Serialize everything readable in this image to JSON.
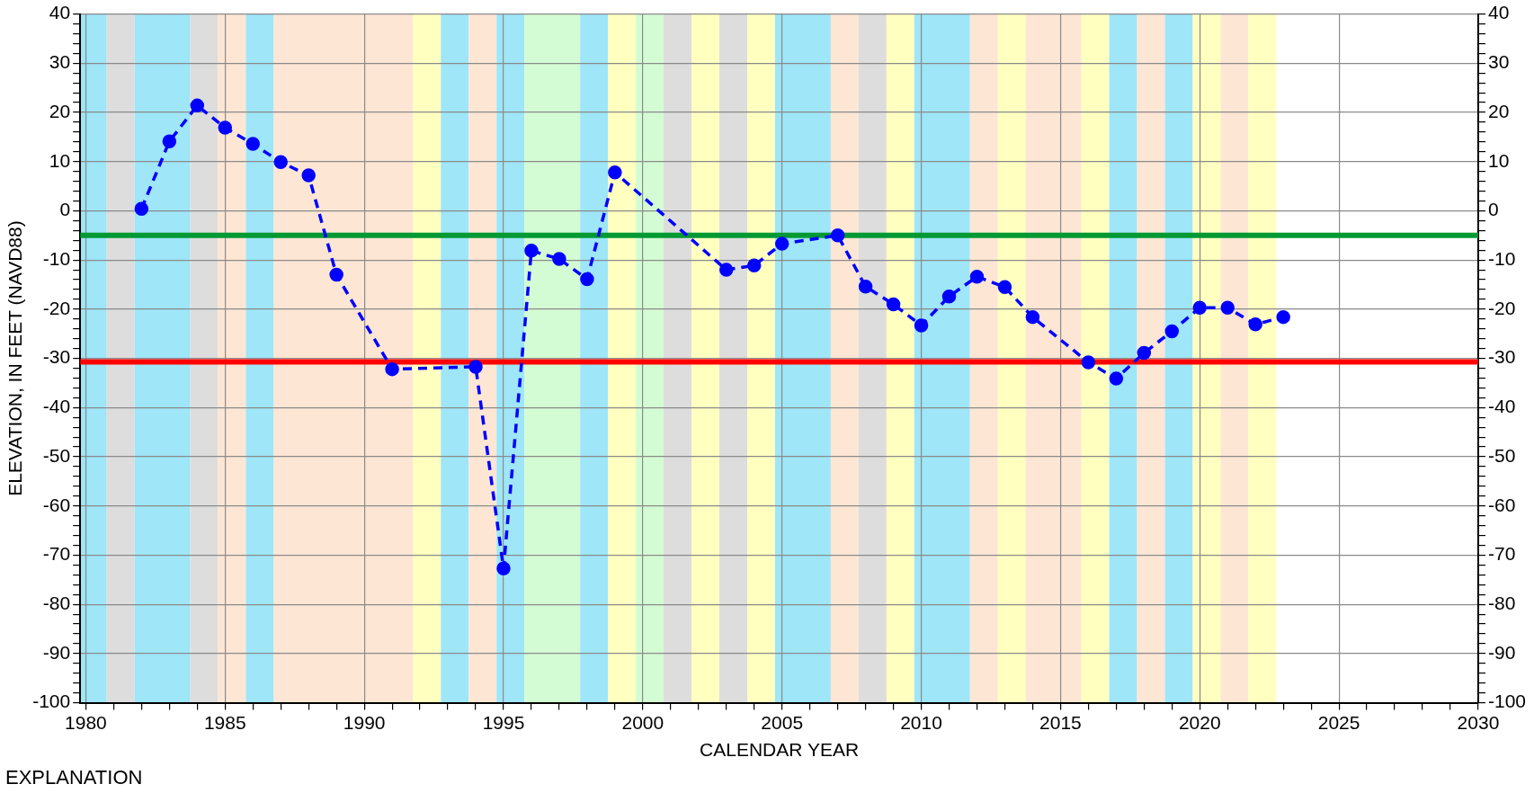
{
  "chart_data": {
    "type": "line",
    "xlabel": "CALENDAR YEAR",
    "ylabel": "ELEVATION, IN FEET (NAVD88)",
    "series": [
      {
        "color": "#0000ff",
        "x": [
          1982,
          1983,
          1984,
          1985,
          1986,
          1987,
          1988,
          1989,
          1991,
          1994,
          1995,
          1996,
          1997,
          1998,
          1999,
          2003,
          2004,
          2005,
          2007,
          2008,
          2009,
          2010,
          2011,
          2012,
          2013,
          2014,
          2016,
          2017,
          2018,
          2019,
          2020,
          2021,
          2022,
          2023
        ],
        "values": [
          0.4,
          14.1,
          21.4,
          16.9,
          13.6,
          9.9,
          7.2,
          -13.0,
          -32.2,
          -31.7,
          -72.7,
          -8.1,
          -9.8,
          -13.9,
          7.8,
          -12.0,
          -11.1,
          -6.7,
          -5.0,
          -15.4,
          -19.0,
          -23.3,
          -17.4,
          -13.4,
          -15.5,
          -21.6,
          -30.8,
          -34.1,
          -28.9,
          -24.5,
          -19.7,
          -19.7,
          -23.1,
          -21.6
        ]
      }
    ],
    "marker": "circle",
    "line_style": "dashed",
    "grid": true,
    "legend": false,
    "xlim": [
      1979.8,
      2030
    ],
    "xticks": [
      1980,
      {
        "value": 1981,
        "label": null
      },
      {
        "value": 1982,
        "label": null
      },
      {
        "value": 1983,
        "label": null
      },
      {
        "value": 1984,
        "label": null
      },
      1985,
      {
        "value": 1986,
        "label": null
      },
      {
        "value": 1987,
        "label": null
      },
      {
        "value": 1988,
        "label": null
      },
      {
        "value": 1989,
        "label": null
      },
      1990,
      {
        "value": 1991,
        "label": null
      },
      {
        "value": 1992,
        "label": null
      },
      {
        "value": 1993,
        "label": null
      },
      {
        "value": 1994,
        "label": null
      },
      1995,
      {
        "value": 1996,
        "label": null
      },
      {
        "value": 1997,
        "label": null
      },
      {
        "value": 1998,
        "label": null
      },
      {
        "value": 1999,
        "label": null
      },
      2000,
      {
        "value": 2001,
        "label": null
      },
      {
        "value": 2002,
        "label": null
      },
      {
        "value": 2003,
        "label": null
      },
      {
        "value": 2004,
        "label": null
      },
      2005,
      {
        "value": 2006,
        "label": null
      },
      {
        "value": 2007,
        "label": null
      },
      {
        "value": 2008,
        "label": null
      },
      {
        "value": 2009,
        "label": null
      },
      2010,
      {
        "value": 2011,
        "label": null
      },
      {
        "value": 2012,
        "label": null
      },
      {
        "value": 2013,
        "label": null
      },
      {
        "value": 2014,
        "label": null
      },
      2015,
      {
        "value": 2016,
        "label": null
      },
      {
        "value": 2017,
        "label": null
      },
      {
        "value": 2018,
        "label": null
      },
      {
        "value": 2019,
        "label": null
      },
      2020,
      {
        "value": 2021,
        "label": null
      },
      {
        "value": 2022,
        "label": null
      },
      {
        "value": 2023,
        "label": null
      },
      {
        "value": 2024,
        "label": null
      },
      2025,
      {
        "value": 2026,
        "label": null
      },
      {
        "value": 2027,
        "label": null
      },
      {
        "value": 2028,
        "label": null
      },
      {
        "value": 2029,
        "label": null
      },
      2030
    ],
    "ylim": [
      -100,
      40
    ],
    "yticks": [
      -100,
      {
        "value": -98,
        "label": null
      },
      {
        "value": -96,
        "label": null
      },
      {
        "value": -94,
        "label": null
      },
      {
        "value": -92,
        "label": null
      },
      -90,
      {
        "value": -88,
        "label": null
      },
      {
        "value": -86,
        "label": null
      },
      {
        "value": -84,
        "label": null
      },
      {
        "value": -82,
        "label": null
      },
      -80,
      {
        "value": -78,
        "label": null
      },
      {
        "value": -76,
        "label": null
      },
      {
        "value": -74,
        "label": null
      },
      {
        "value": -72,
        "label": null
      },
      -70,
      {
        "value": -68,
        "label": null
      },
      {
        "value": -66,
        "label": null
      },
      {
        "value": -64,
        "label": null
      },
      {
        "value": -62,
        "label": null
      },
      -60,
      {
        "value": -58,
        "label": null
      },
      {
        "value": -56,
        "label": null
      },
      {
        "value": -54,
        "label": null
      },
      {
        "value": -52,
        "label": null
      },
      -50,
      {
        "value": -48,
        "label": null
      },
      {
        "value": -46,
        "label": null
      },
      {
        "value": -44,
        "label": null
      },
      {
        "value": -42,
        "label": null
      },
      -40,
      {
        "value": -38,
        "label": null
      },
      {
        "value": -36,
        "label": null
      },
      {
        "value": -34,
        "label": null
      },
      {
        "value": -32,
        "label": null
      },
      -30,
      {
        "value": -28,
        "label": null
      },
      {
        "value": -26,
        "label": null
      },
      {
        "value": -24,
        "label": null
      },
      {
        "value": -22,
        "label": null
      },
      -20,
      {
        "value": -18,
        "label": null
      },
      {
        "value": -16,
        "label": null
      },
      {
        "value": -14,
        "label": null
      },
      {
        "value": -12,
        "label": null
      },
      -10,
      {
        "value": -8,
        "label": null
      },
      {
        "value": -6,
        "label": null
      },
      {
        "value": -4,
        "label": null
      },
      {
        "value": -2,
        "label": null
      },
      0,
      {
        "value": 2,
        "label": null
      },
      {
        "value": 4,
        "label": null
      },
      {
        "value": 6,
        "label": null
      },
      {
        "value": 8,
        "label": null
      },
      10,
      {
        "value": 12,
        "label": null
      },
      {
        "value": 14,
        "label": null
      },
      {
        "value": 16,
        "label": null
      },
      {
        "value": 18,
        "label": null
      },
      20,
      {
        "value": 22,
        "label": null
      },
      {
        "value": 24,
        "label": null
      },
      {
        "value": 26,
        "label": null
      },
      {
        "value": 28,
        "label": null
      },
      30,
      {
        "value": 32,
        "label": null
      },
      {
        "value": 34,
        "label": null
      },
      {
        "value": 36,
        "label": null
      },
      {
        "value": 38,
        "label": null
      },
      40
    ],
    "y2lim": [
      -100,
      40
    ],
    "y2ticks": [
      -100,
      {
        "value": -98,
        "label": null
      },
      {
        "value": -96,
        "label": null
      },
      {
        "value": -94,
        "label": null
      },
      {
        "value": -92,
        "label": null
      },
      -90,
      {
        "value": -88,
        "label": null
      },
      {
        "value": -86,
        "label": null
      },
      {
        "value": -84,
        "label": null
      },
      {
        "value": -82,
        "label": null
      },
      -80,
      {
        "value": -78,
        "label": null
      },
      {
        "value": -76,
        "label": null
      },
      {
        "value": -74,
        "label": null
      },
      {
        "value": -72,
        "label": null
      },
      -70,
      {
        "value": -68,
        "label": null
      },
      {
        "value": -66,
        "label": null
      },
      {
        "value": -64,
        "label": null
      },
      {
        "value": -62,
        "label": null
      },
      -60,
      {
        "value": -58,
        "label": null
      },
      {
        "value": -56,
        "label": null
      },
      {
        "value": -54,
        "label": null
      },
      {
        "value": -52,
        "label": null
      },
      -50,
      {
        "value": -48,
        "label": null
      },
      {
        "value": -46,
        "label": null
      },
      {
        "value": -44,
        "label": null
      },
      {
        "value": -42,
        "label": null
      },
      -40,
      {
        "value": -38,
        "label": null
      },
      {
        "value": -36,
        "label": null
      },
      {
        "value": -34,
        "label": null
      },
      {
        "value": -32,
        "label": null
      },
      -30,
      {
        "value": -28,
        "label": null
      },
      {
        "value": -26,
        "label": null
      },
      {
        "value": -24,
        "label": null
      },
      {
        "value": -22,
        "label": null
      },
      -20,
      {
        "value": -18,
        "label": null
      },
      {
        "value": -16,
        "label": null
      },
      {
        "value": -14,
        "label": null
      },
      {
        "value": -12,
        "label": null
      },
      -10,
      {
        "value": -8,
        "label": null
      },
      {
        "value": -6,
        "label": null
      },
      {
        "value": -4,
        "label": null
      },
      {
        "value": -2,
        "label": null
      },
      0,
      {
        "value": 2,
        "label": null
      },
      {
        "value": 4,
        "label": null
      },
      {
        "value": 6,
        "label": null
      },
      {
        "value": 8,
        "label": null
      },
      10,
      {
        "value": 12,
        "label": null
      },
      {
        "value": 14,
        "label": null
      },
      {
        "value": 16,
        "label": null
      },
      {
        "value": 18,
        "label": null
      },
      20,
      {
        "value": 22,
        "label": null
      },
      {
        "value": 24,
        "label": null
      },
      {
        "value": 26,
        "label": null
      },
      {
        "value": 28,
        "label": null
      },
      30,
      {
        "value": 32,
        "label": null
      },
      {
        "value": 34,
        "label": null
      },
      {
        "value": 36,
        "label": null
      },
      {
        "value": 38,
        "label": null
      },
      40
    ],
    "ref_lines": [
      {
        "axis": "y",
        "value": -5,
        "color": "#009933"
      },
      {
        "axis": "y",
        "value": -30.7,
        "color": "#ff0000"
      }
    ],
    "bands": [
      {
        "axis": "x",
        "from": 1979.8,
        "to": 1980.75,
        "color": "#9ee6f8"
      },
      {
        "axis": "x",
        "from": 1980.75,
        "to": 1981.75,
        "color": "#dddddd"
      },
      {
        "axis": "x",
        "from": 1981.75,
        "to": 1983.75,
        "color": "#9ee6f8"
      },
      {
        "axis": "x",
        "from": 1983.75,
        "to": 1984.75,
        "color": "#dddddd"
      },
      {
        "axis": "x",
        "from": 1984.75,
        "to": 1985.75,
        "color": "#fde6d4"
      },
      {
        "axis": "x",
        "from": 1985.75,
        "to": 1986.75,
        "color": "#9ee6f8"
      },
      {
        "axis": "x",
        "from": 1986.75,
        "to": 1991.75,
        "color": "#fde6d4"
      },
      {
        "axis": "x",
        "from": 1991.75,
        "to": 1992.75,
        "color": "#ffffc0"
      },
      {
        "axis": "x",
        "from": 1992.75,
        "to": 1993.75,
        "color": "#9ee6f8"
      },
      {
        "axis": "x",
        "from": 1993.75,
        "to": 1994.75,
        "color": "#fde6d4"
      },
      {
        "axis": "x",
        "from": 1994.75,
        "to": 1995.75,
        "color": "#9ee6f8"
      },
      {
        "axis": "x",
        "from": 1995.75,
        "to": 1997.75,
        "color": "#d4fcd4"
      },
      {
        "axis": "x",
        "from": 1997.75,
        "to": 1998.75,
        "color": "#9ee6f8"
      },
      {
        "axis": "x",
        "from": 1998.75,
        "to": 1999.75,
        "color": "#ffffc0"
      },
      {
        "axis": "x",
        "from": 1999.75,
        "to": 2000.75,
        "color": "#d4fcd4"
      },
      {
        "axis": "x",
        "from": 2000.75,
        "to": 2001.75,
        "color": "#dddddd"
      },
      {
        "axis": "x",
        "from": 2001.75,
        "to": 2002.75,
        "color": "#ffffc0"
      },
      {
        "axis": "x",
        "from": 2002.75,
        "to": 2003.75,
        "color": "#dddddd"
      },
      {
        "axis": "x",
        "from": 2003.75,
        "to": 2004.75,
        "color": "#ffffc0"
      },
      {
        "axis": "x",
        "from": 2004.75,
        "to": 2006.75,
        "color": "#9ee6f8"
      },
      {
        "axis": "x",
        "from": 2006.75,
        "to": 2007.75,
        "color": "#fde6d4"
      },
      {
        "axis": "x",
        "from": 2007.75,
        "to": 2008.75,
        "color": "#dddddd"
      },
      {
        "axis": "x",
        "from": 2008.75,
        "to": 2009.75,
        "color": "#ffffc0"
      },
      {
        "axis": "x",
        "from": 2009.75,
        "to": 2011.75,
        "color": "#9ee6f8"
      },
      {
        "axis": "x",
        "from": 2011.75,
        "to": 2012.75,
        "color": "#fde6d4"
      },
      {
        "axis": "x",
        "from": 2012.75,
        "to": 2013.75,
        "color": "#ffffc0"
      },
      {
        "axis": "x",
        "from": 2013.75,
        "to": 2015.75,
        "color": "#fde6d4"
      },
      {
        "axis": "x",
        "from": 2015.75,
        "to": 2016.75,
        "color": "#ffffc0"
      },
      {
        "axis": "x",
        "from": 2016.75,
        "to": 2017.75,
        "color": "#9ee6f8"
      },
      {
        "axis": "x",
        "from": 2017.75,
        "to": 2018.75,
        "color": "#fde6d4"
      },
      {
        "axis": "x",
        "from": 2018.75,
        "to": 2019.75,
        "color": "#9ee6f8"
      },
      {
        "axis": "x",
        "from": 2019.75,
        "to": 2020.75,
        "color": "#ffffc0"
      },
      {
        "axis": "x",
        "from": 2020.75,
        "to": 2021.75,
        "color": "#fde6d4"
      },
      {
        "axis": "x",
        "from": 2021.75,
        "to": 2022.75,
        "color": "#ffffc0"
      }
    ],
    "annotations": [
      "EXPLANATION"
    ]
  }
}
